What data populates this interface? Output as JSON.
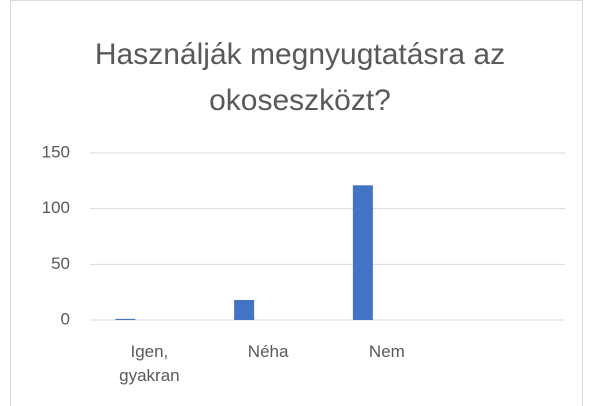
{
  "chart_data": {
    "type": "bar",
    "title": "Használják megnyugtatásra az okoseszközt?",
    "categories": [
      "Igen, gyakran",
      "Néha",
      "Nem",
      null
    ],
    "values": [
      1,
      18,
      121,
      null
    ],
    "color": "#4472c4",
    "ylim": [
      0,
      150
    ],
    "yticks": [
      0,
      50,
      100,
      150
    ],
    "grid": true
  }
}
